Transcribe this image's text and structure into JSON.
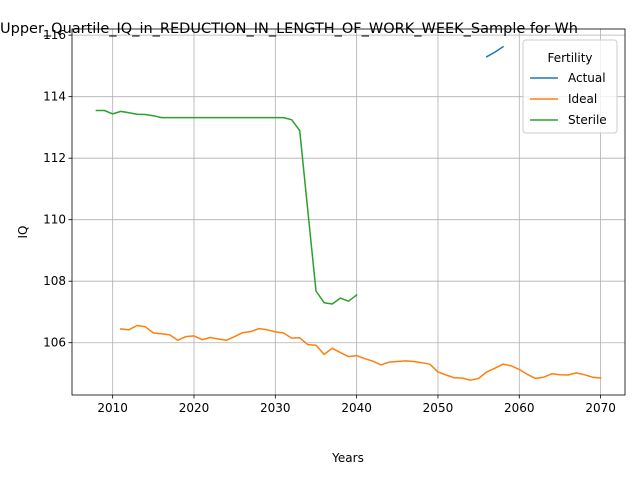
{
  "chart_data": {
    "type": "line",
    "title": "Upper_Quartile_IQ_in_REDUCTION_IN_LENGTH_OF_WORK_WEEK_Sample for Wh",
    "xlabel": "Years",
    "ylabel": "IQ",
    "xlim": [
      2005,
      2073
    ],
    "ylim": [
      104.3,
      116.2
    ],
    "xticks": [
      2010,
      2020,
      2030,
      2040,
      2050,
      2060,
      2070
    ],
    "yticks": [
      106,
      108,
      110,
      112,
      114,
      116
    ],
    "grid": true,
    "legend": {
      "title": "Fertility",
      "placement": "top-right"
    },
    "series": [
      {
        "name": "Actual",
        "color": "#1f77b4",
        "x": [
          2056,
          2057,
          2058
        ],
        "y": [
          115.3,
          115.45,
          115.62
        ]
      },
      {
        "name": "Ideal",
        "color": "#ff7f0e",
        "x": [
          2011,
          2012,
          2013,
          2014,
          2015,
          2016,
          2017,
          2018,
          2019,
          2020,
          2021,
          2022,
          2023,
          2024,
          2025,
          2026,
          2027,
          2028,
          2029,
          2030,
          2031,
          2032,
          2033,
          2034,
          2035,
          2036,
          2037,
          2038,
          2039,
          2040,
          2041,
          2042,
          2043,
          2044,
          2045,
          2046,
          2047,
          2048,
          2049,
          2050,
          2051,
          2052,
          2053,
          2054,
          2055,
          2056,
          2057,
          2058,
          2059,
          2060,
          2061,
          2062,
          2063,
          2064,
          2065,
          2066,
          2067,
          2068,
          2069,
          2070
        ],
        "y": [
          106.45,
          106.42,
          106.56,
          106.52,
          106.32,
          106.29,
          106.26,
          106.08,
          106.2,
          106.22,
          106.1,
          106.17,
          106.12,
          106.08,
          106.2,
          106.33,
          106.36,
          106.46,
          106.42,
          106.35,
          106.32,
          106.15,
          106.16,
          105.94,
          105.92,
          105.62,
          105.82,
          105.68,
          105.55,
          105.58,
          105.48,
          105.4,
          105.28,
          105.37,
          105.39,
          105.41,
          105.39,
          105.35,
          105.3,
          105.05,
          104.95,
          104.86,
          104.85,
          104.78,
          104.84,
          105.05,
          105.17,
          105.3,
          105.25,
          105.13,
          104.97,
          104.84,
          104.88,
          104.99,
          104.96,
          104.95,
          105.02,
          104.96,
          104.88,
          104.85
        ]
      },
      {
        "name": "Sterile",
        "color": "#2ca02c",
        "x": [
          2008,
          2009,
          2010,
          2011,
          2012,
          2013,
          2014,
          2015,
          2016,
          2017,
          2018,
          2019,
          2020,
          2021,
          2022,
          2023,
          2024,
          2025,
          2026,
          2027,
          2028,
          2029,
          2030,
          2031,
          2032,
          2033,
          2034,
          2035,
          2036,
          2037,
          2038,
          2039,
          2040
        ],
        "y": [
          113.55,
          113.55,
          113.44,
          113.52,
          113.48,
          113.43,
          113.42,
          113.38,
          113.32,
          113.32,
          113.32,
          113.32,
          113.32,
          113.32,
          113.32,
          113.32,
          113.32,
          113.32,
          113.32,
          113.32,
          113.32,
          113.32,
          113.32,
          113.32,
          113.25,
          112.9,
          110.3,
          107.68,
          107.3,
          107.26,
          107.45,
          107.35,
          107.55
        ]
      }
    ]
  }
}
